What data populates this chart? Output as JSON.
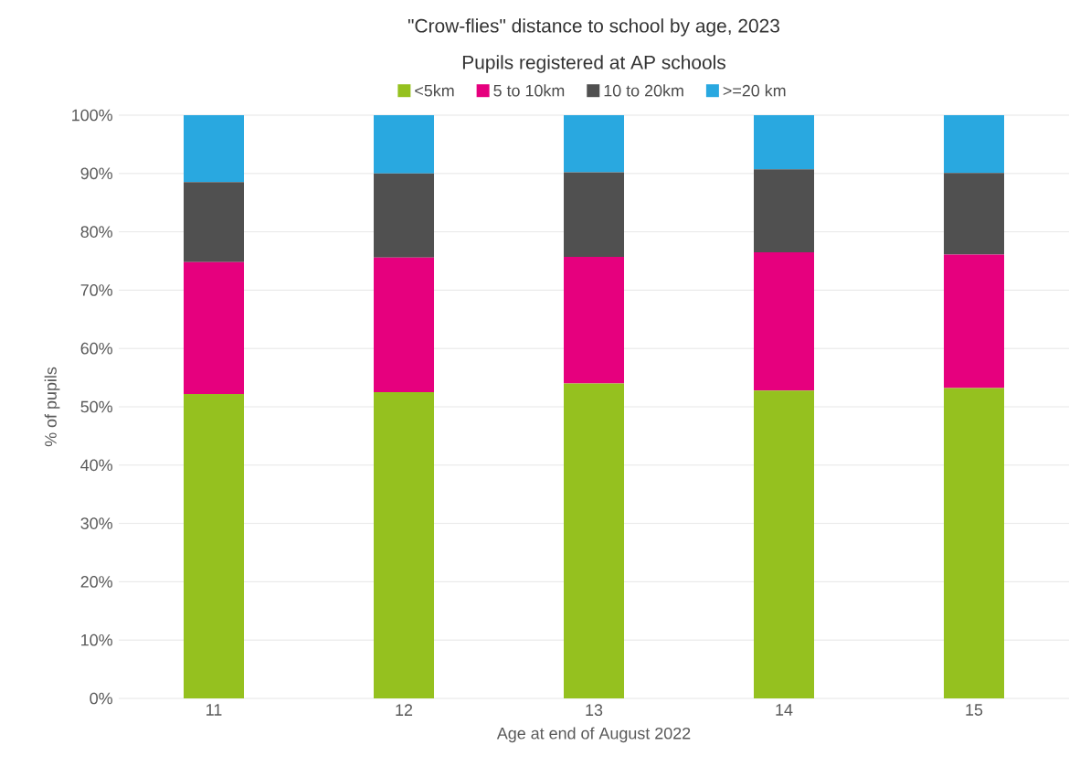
{
  "chart_data": {
    "type": "bar",
    "title": "\"Crow-flies\" distance to school by age, 2023",
    "subtitle": "Pupils registered at AP schools",
    "xlabel": "Age at end of August 2022",
    "ylabel": "% of pupils",
    "categories": [
      "11",
      "12",
      "13",
      "14",
      "15"
    ],
    "series": [
      {
        "name": "<5km",
        "color": "#95c11f",
        "values": [
          52.2,
          52.5,
          54.0,
          52.8,
          53.2
        ]
      },
      {
        "name": "5 to 10km",
        "color": "#e6007e",
        "values": [
          22.6,
          23.1,
          21.7,
          23.7,
          22.9
        ]
      },
      {
        "name": "10 to 20km",
        "color": "#505050",
        "values": [
          13.7,
          14.4,
          14.5,
          14.2,
          14.0
        ]
      },
      {
        "name": ">=20 km",
        "color": "#29a8e0",
        "values": [
          11.5,
          10.0,
          9.8,
          9.3,
          9.9
        ]
      }
    ],
    "stacked": true,
    "ylim": [
      0,
      100
    ],
    "yticks": [
      {
        "value": 0,
        "label": "0%"
      },
      {
        "value": 10,
        "label": "10%"
      },
      {
        "value": 20,
        "label": "20%"
      },
      {
        "value": 30,
        "label": "30%"
      },
      {
        "value": 40,
        "label": "40%"
      },
      {
        "value": 50,
        "label": "50%"
      },
      {
        "value": 60,
        "label": "60%"
      },
      {
        "value": 70,
        "label": "70%"
      },
      {
        "value": 80,
        "label": "80%"
      },
      {
        "value": 90,
        "label": "90%"
      },
      {
        "value": 100,
        "label": "100%"
      }
    ],
    "grid": "y",
    "legend": "top"
  }
}
